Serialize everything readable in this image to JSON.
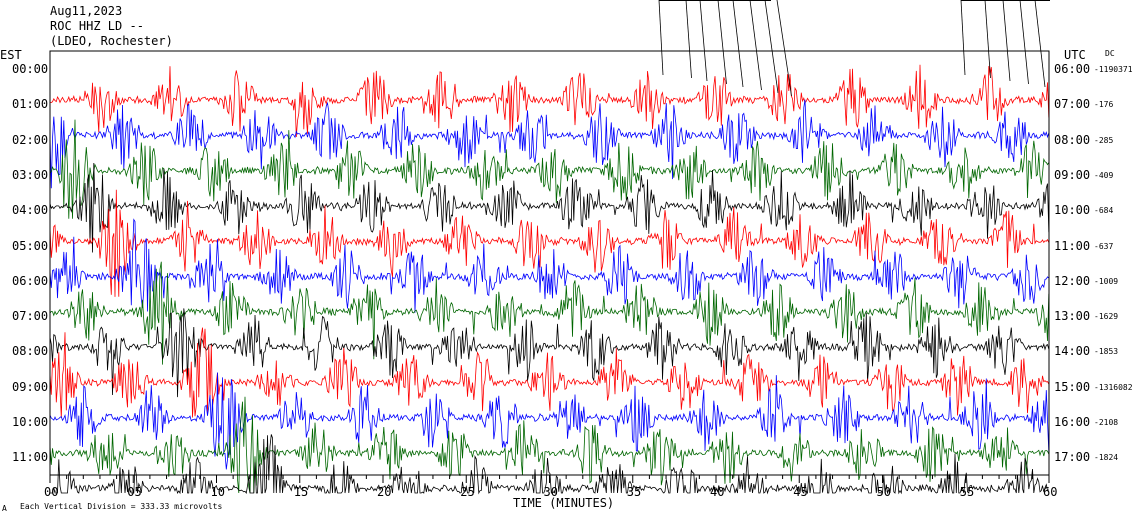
{
  "header": {
    "date": "Aug11,2023",
    "station": "ROC HHZ LD --",
    "network": "(LDEO, Rochester)"
  },
  "left_axis_label": "EST",
  "right_axis_label": "UTC",
  "dc_label": "DC",
  "footer": {
    "scale_note": "Each Vertical Division = 333.33 microvolts",
    "corner_mark": "A"
  },
  "chart_data": {
    "type": "line",
    "title": "",
    "xlabel": "TIME (MINUTES)",
    "ylabel": "",
    "xlim": [
      0,
      60
    ],
    "x_ticks": [
      "00",
      "05",
      "10",
      "15",
      "20",
      "25",
      "30",
      "35",
      "40",
      "45",
      "50",
      "55",
      "60"
    ],
    "est_hours": [
      "00:00",
      "01:00",
      "02:00",
      "03:00",
      "04:00",
      "05:00",
      "06:00",
      "07:00",
      "08:00",
      "09:00",
      "10:00",
      "11:00"
    ],
    "utc_hours": [
      "06:00",
      "07:00",
      "08:00",
      "09:00",
      "10:00",
      "11:00",
      "12:00",
      "13:00",
      "14:00",
      "15:00",
      "16:00",
      "17:00"
    ],
    "dc_offsets": [
      "-1190371",
      "-176",
      "-285",
      "-409",
      "-684",
      "-637",
      "-1009",
      "-1629",
      "-1853",
      "-1316082",
      "-2108",
      "-1824"
    ],
    "trace_colors": [
      "#ff0000",
      "#0000ff",
      "#006600",
      "#000000"
    ],
    "grid": false
  }
}
